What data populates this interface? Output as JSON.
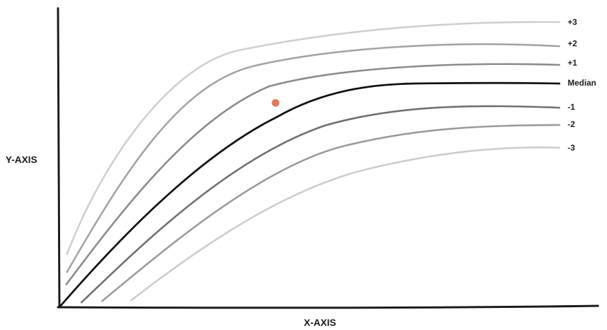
{
  "chart_data": {
    "type": "line",
    "xlabel": "X-AXIS",
    "ylabel": "Y-AXIS",
    "grid": false,
    "legend": "none",
    "series": [
      {
        "name": "+3",
        "color": "#cfcfcf",
        "emphasis": false
      },
      {
        "name": "+2",
        "color": "#a3a3a3",
        "emphasis": false
      },
      {
        "name": "+1",
        "color": "#8a8a8a",
        "emphasis": false
      },
      {
        "name": "Median",
        "color": "#111111",
        "emphasis": true
      },
      {
        "name": "-1",
        "color": "#6f6f6f",
        "emphasis": false
      },
      {
        "name": "-2",
        "color": "#9a9a9a",
        "emphasis": false
      },
      {
        "name": "-3",
        "color": "#cccccc",
        "emphasis": false
      }
    ],
    "marker": {
      "color": "#e07a5f"
    }
  }
}
